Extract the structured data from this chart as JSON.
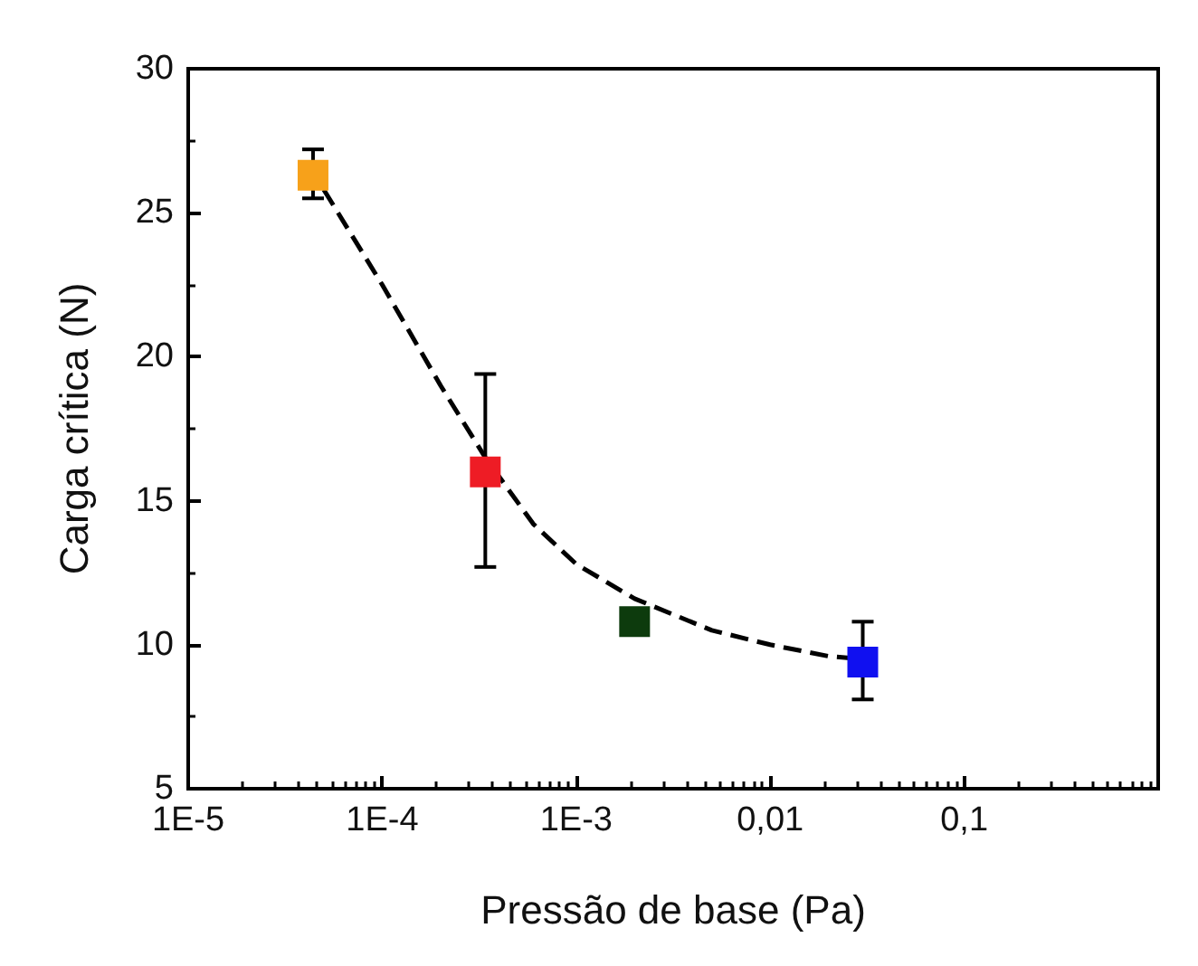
{
  "chart_data": {
    "type": "scatter",
    "xlabel": "Pressão de base (Pa)",
    "ylabel": "Carga crítica (N)",
    "log": "x",
    "xlim": [
      1e-05,
      1
    ],
    "xticks": [
      {
        "value": 1e-05,
        "label": "1E-5"
      },
      {
        "value": 0.0001,
        "label": "1E-4"
      },
      {
        "value": 0.001,
        "label": "1E-3"
      },
      {
        "value": 0.01,
        "label": "0,01"
      },
      {
        "value": 0.1,
        "label": "0,1"
      }
    ],
    "ylim": [
      5,
      30
    ],
    "yticks": [
      5,
      10,
      15,
      20,
      25,
      30
    ],
    "grid": false,
    "marker": "square",
    "series": [
      {
        "x": [
          4.4e-05,
          0.00034,
          0.002,
          0.03
        ],
        "values": [
          26.3,
          16.0,
          10.8,
          9.4
        ],
        "colors": [
          "#f7a11a",
          "#ee1c25",
          "#0d3b0d",
          "#1010f0"
        ],
        "errors": [
          [
            25.5,
            27.2
          ],
          [
            12.7,
            19.4
          ],
          null,
          [
            8.1,
            10.8
          ]
        ]
      },
      {
        "type": "line",
        "line_style": "dashed",
        "marker": "none",
        "color": "#000000",
        "x": [
          5e-05,
          0.0001,
          0.0002,
          0.00034,
          0.0006,
          0.001,
          0.002,
          0.005,
          0.01,
          0.02,
          0.03
        ],
        "values": [
          25.8,
          22.5,
          19.0,
          16.5,
          14.2,
          12.8,
          11.6,
          10.5,
          10.0,
          9.6,
          9.5
        ]
      }
    ]
  }
}
